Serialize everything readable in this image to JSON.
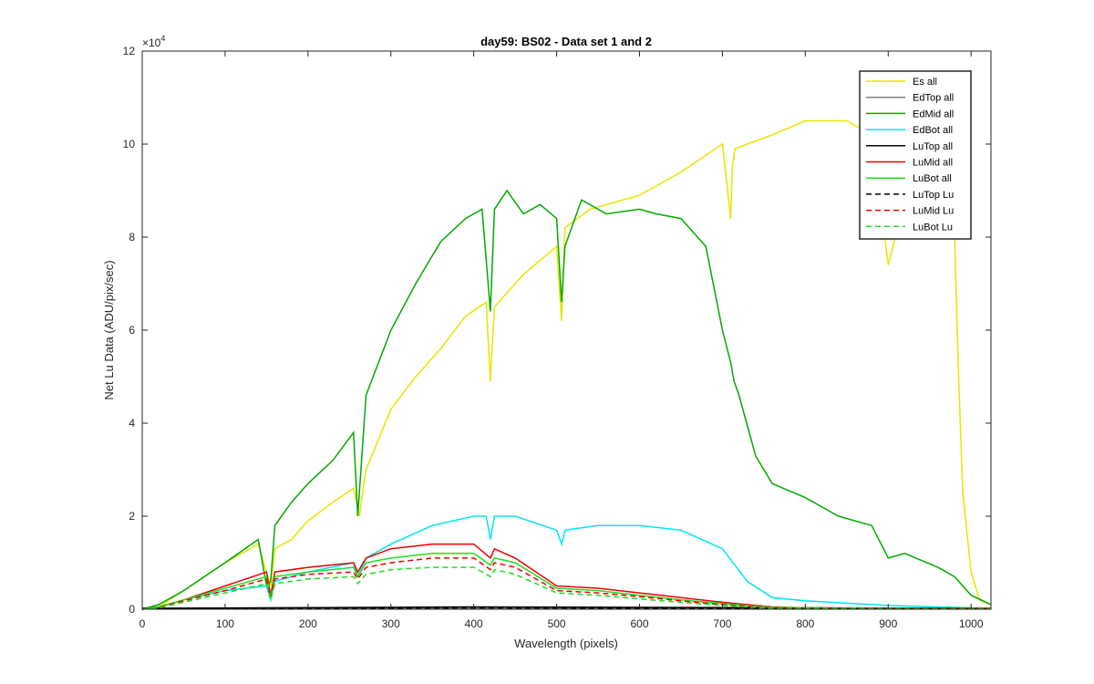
{
  "chart_data": {
    "type": "line",
    "title": "day59: BS02 - Data set 1 and 2",
    "xlabel": "Wavelength (pixels)",
    "ylabel": "Net Lu Data (ADU/pix/sec)",
    "y_exponent_label": "×10",
    "y_exponent_power": "4",
    "xlim": [
      0,
      1024
    ],
    "ylim": [
      0,
      12
    ],
    "x_ticks": [
      0,
      100,
      200,
      300,
      400,
      500,
      600,
      700,
      800,
      900,
      1000
    ],
    "y_ticks": [
      0,
      2,
      4,
      6,
      8,
      10,
      12
    ],
    "grid": false,
    "legend_position": "top-right",
    "series": [
      {
        "name": "Es  all",
        "color": "#e6e600",
        "dash": "solid",
        "x": [
          0,
          20,
          50,
          100,
          140,
          150,
          155,
          160,
          180,
          200,
          230,
          255,
          262,
          270,
          300,
          330,
          360,
          390,
          415,
          420,
          425,
          460,
          500,
          506,
          510,
          540,
          600,
          650,
          700,
          710,
          712,
          715,
          760,
          800,
          850,
          880,
          900,
          940,
          970,
          980,
          985,
          990,
          1000,
          1010,
          1024
        ],
        "y": [
          0,
          0.05,
          0.4,
          1.0,
          1.4,
          0.8,
          0.5,
          1.3,
          1.5,
          1.9,
          2.3,
          2.6,
          2.0,
          3.0,
          4.3,
          5.0,
          5.6,
          6.3,
          6.6,
          4.9,
          6.5,
          7.2,
          7.8,
          6.2,
          8.2,
          8.6,
          8.9,
          9.4,
          10.0,
          8.4,
          9.5,
          9.9,
          10.2,
          10.5,
          10.5,
          10.2,
          7.4,
          10.2,
          10.0,
          8.0,
          5.0,
          2.5,
          0.8,
          0.2,
          0.1
        ]
      },
      {
        "name": "EdTop  all",
        "color": "#808080",
        "dash": "solid",
        "x": [
          0,
          1024
        ],
        "y": [
          0.02,
          0.02
        ]
      },
      {
        "name": "EdMid  all",
        "color": "#00aa00",
        "dash": "solid",
        "x": [
          0,
          20,
          50,
          100,
          140,
          150,
          155,
          160,
          180,
          200,
          230,
          255,
          260,
          270,
          300,
          330,
          360,
          390,
          410,
          420,
          425,
          440,
          460,
          480,
          500,
          506,
          510,
          530,
          560,
          600,
          620,
          650,
          680,
          700,
          710,
          714,
          720,
          740,
          760,
          800,
          840,
          880,
          900,
          920,
          960,
          980,
          1000,
          1024
        ],
        "y": [
          0,
          0.1,
          0.4,
          1.0,
          1.5,
          0.5,
          0.6,
          1.8,
          2.3,
          2.7,
          3.2,
          3.8,
          2.0,
          4.6,
          6.0,
          7.0,
          7.9,
          8.4,
          8.6,
          6.4,
          8.6,
          9.0,
          8.5,
          8.7,
          8.4,
          6.6,
          7.8,
          8.8,
          8.5,
          8.6,
          8.5,
          8.4,
          7.8,
          6.0,
          5.3,
          4.9,
          4.6,
          3.3,
          2.7,
          2.4,
          2.0,
          1.8,
          1.1,
          1.2,
          0.9,
          0.7,
          0.3,
          0.1
        ]
      },
      {
        "name": "EdBot  all",
        "color": "#00e5ee",
        "dash": "solid",
        "x": [
          0,
          20,
          50,
          100,
          150,
          155,
          160,
          200,
          255,
          260,
          270,
          300,
          350,
          400,
          415,
          420,
          425,
          450,
          500,
          506,
          510,
          550,
          600,
          650,
          700,
          730,
          760,
          800,
          900,
          1000,
          1024
        ],
        "y": [
          0,
          0.05,
          0.2,
          0.4,
          0.5,
          0.2,
          0.6,
          0.8,
          1.0,
          0.7,
          1.1,
          1.4,
          1.8,
          2.0,
          2.0,
          1.5,
          2.0,
          2.0,
          1.7,
          1.4,
          1.7,
          1.8,
          1.8,
          1.7,
          1.3,
          0.6,
          0.25,
          0.18,
          0.08,
          0.03,
          0.02
        ]
      },
      {
        "name": "LuTop  all",
        "color": "#000000",
        "dash": "solid",
        "x": [
          0,
          400,
          1024
        ],
        "y": [
          0.02,
          0.05,
          0.02
        ]
      },
      {
        "name": "LuMid  all",
        "color": "#ee0000",
        "dash": "solid",
        "x": [
          0,
          20,
          50,
          100,
          150,
          155,
          160,
          200,
          255,
          260,
          270,
          300,
          350,
          400,
          420,
          425,
          450,
          500,
          550,
          600,
          650,
          700,
          760,
          800,
          900,
          1024
        ],
        "y": [
          0,
          0.05,
          0.2,
          0.5,
          0.8,
          0.3,
          0.8,
          0.9,
          1.0,
          0.8,
          1.1,
          1.3,
          1.4,
          1.4,
          1.1,
          1.3,
          1.1,
          0.5,
          0.45,
          0.35,
          0.25,
          0.15,
          0.05,
          0.03,
          0.02,
          0.02
        ]
      },
      {
        "name": "LuBot  all",
        "color": "#22dd22",
        "dash": "solid",
        "x": [
          0,
          20,
          50,
          100,
          150,
          155,
          160,
          200,
          255,
          260,
          270,
          300,
          350,
          400,
          420,
          425,
          450,
          500,
          550,
          600,
          650,
          700,
          760,
          800,
          900,
          1024
        ],
        "y": [
          0,
          0.05,
          0.2,
          0.45,
          0.7,
          0.25,
          0.7,
          0.8,
          0.9,
          0.7,
          1.0,
          1.1,
          1.2,
          1.2,
          0.95,
          1.1,
          1.0,
          0.45,
          0.4,
          0.3,
          0.2,
          0.12,
          0.04,
          0.03,
          0.02,
          0.02
        ]
      },
      {
        "name": "LuTop  Lu",
        "color": "#000000",
        "dash": "dashed",
        "x": [
          0,
          400,
          1024
        ],
        "y": [
          0.01,
          0.03,
          0.01
        ]
      },
      {
        "name": "LuMid  Lu",
        "color": "#ee0000",
        "dash": "dashed",
        "x": [
          0,
          20,
          50,
          100,
          150,
          155,
          160,
          200,
          255,
          260,
          270,
          300,
          350,
          400,
          420,
          425,
          450,
          500,
          550,
          600,
          650,
          700,
          760,
          800,
          900,
          1024
        ],
        "y": [
          0,
          0.04,
          0.18,
          0.4,
          0.65,
          0.25,
          0.65,
          0.75,
          0.8,
          0.65,
          0.9,
          1.0,
          1.1,
          1.1,
          0.85,
          1.0,
          0.9,
          0.4,
          0.35,
          0.27,
          0.18,
          0.1,
          0.03,
          0.02,
          0.02,
          0.02
        ]
      },
      {
        "name": "LuBot  Lu",
        "color": "#22dd22",
        "dash": "dashed",
        "x": [
          0,
          20,
          50,
          100,
          150,
          155,
          160,
          200,
          255,
          260,
          270,
          300,
          350,
          400,
          420,
          425,
          450,
          500,
          550,
          600,
          650,
          700,
          760,
          800,
          900,
          1024
        ],
        "y": [
          0,
          0.03,
          0.15,
          0.35,
          0.55,
          0.2,
          0.55,
          0.65,
          0.7,
          0.55,
          0.75,
          0.85,
          0.9,
          0.9,
          0.7,
          0.85,
          0.75,
          0.35,
          0.3,
          0.22,
          0.15,
          0.08,
          0.02,
          0.02,
          0.01,
          0.01
        ]
      }
    ]
  }
}
